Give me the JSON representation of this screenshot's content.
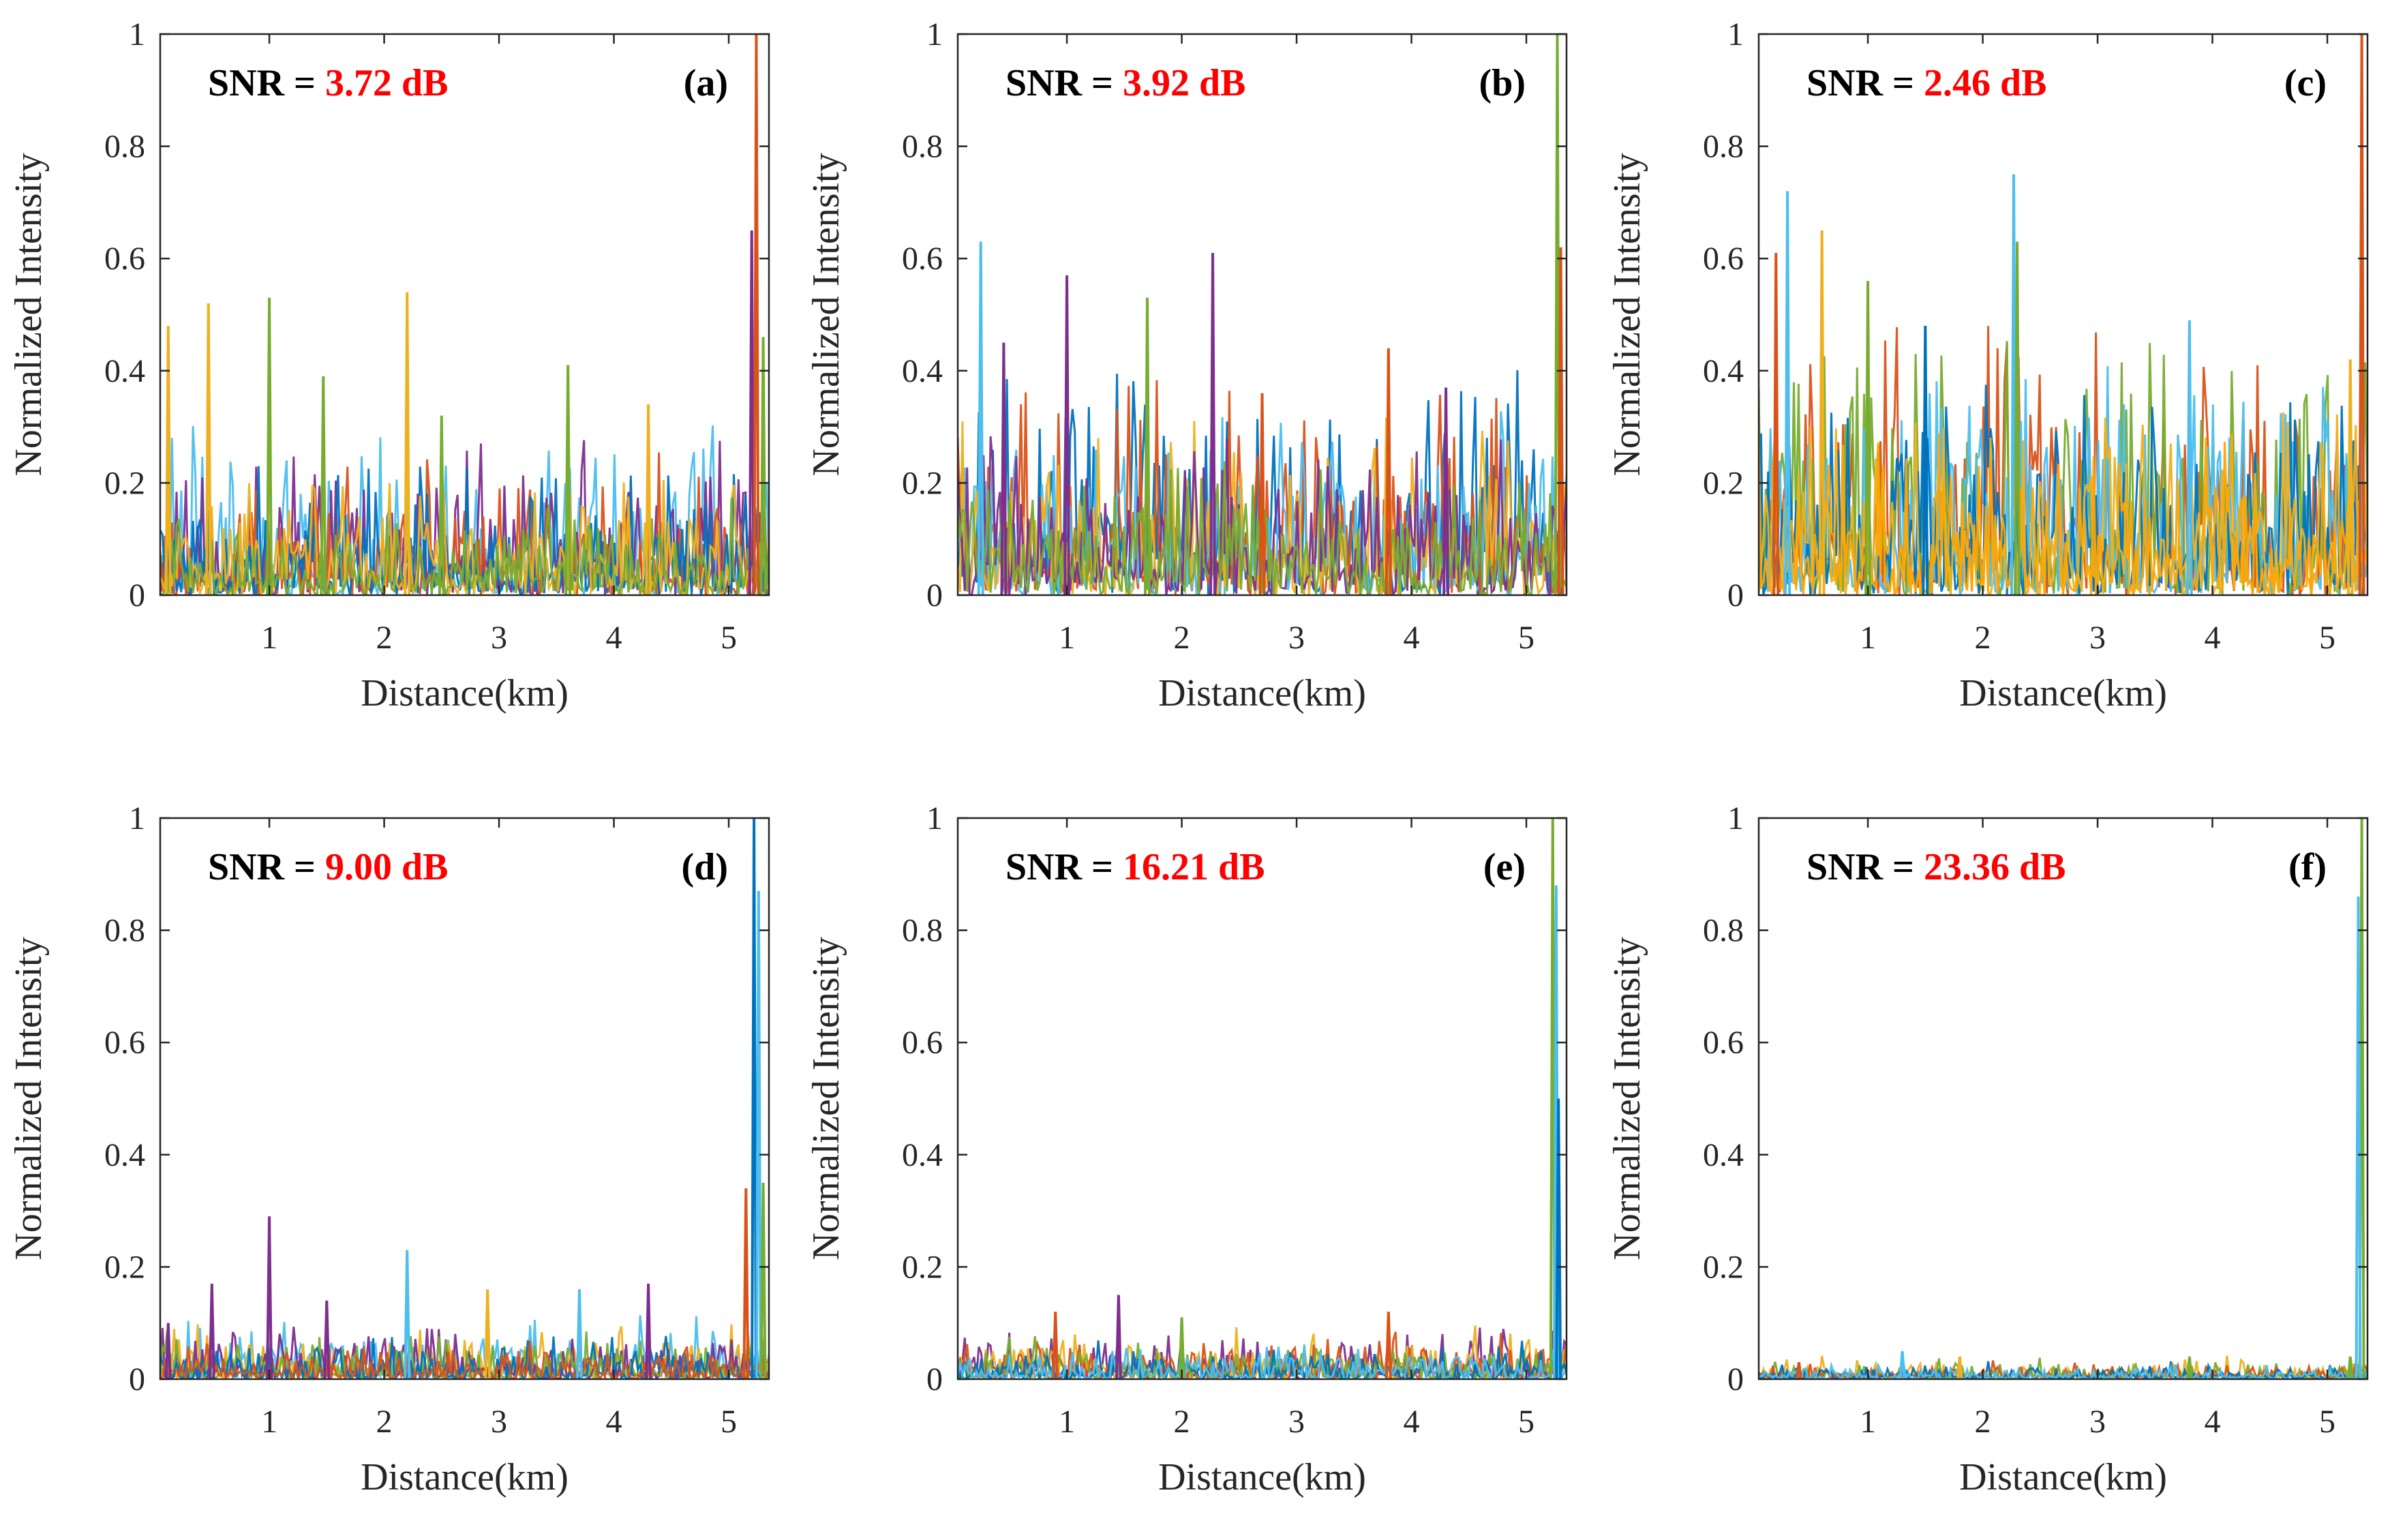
{
  "figure": {
    "colors": [
      "#0072BD",
      "#D95319",
      "#EDB120",
      "#7E2F8E",
      "#77AC30",
      "#4DBEEE"
    ],
    "snr_label_color": "#FF0000"
  },
  "chart_data": [
    {
      "type": "line",
      "panel": "(a)",
      "snr_prefix": "SNR = ",
      "snr_value": "3.72 dB",
      "xlabel": "Distance(km)",
      "ylabel": "Normalized Intensity",
      "xlim": [
        0.05,
        5.35
      ],
      "ylim": [
        0,
        1
      ],
      "xticks": [
        1,
        2,
        3,
        4,
        5
      ],
      "yticks": [
        0,
        0.2,
        0.4,
        0.6,
        0.8,
        1
      ],
      "ytick_labels": [
        "0",
        "0.2",
        "0.4",
        "0.6",
        "0.8",
        "1"
      ],
      "noise_level": 0.16,
      "spike_rate": 0.07,
      "series_colors": [
        "#4DBEEE",
        "#7E2F8E",
        "#D95319",
        "#0072BD",
        "#EDB120",
        "#77AC30"
      ],
      "peaks": [
        {
          "x": 0.12,
          "y": 0.48,
          "color": "#EDB120"
        },
        {
          "x": 0.47,
          "y": 0.52,
          "color": "#EDB120"
        },
        {
          "x": 1.0,
          "y": 0.53,
          "color": "#77AC30"
        },
        {
          "x": 1.47,
          "y": 0.39,
          "color": "#77AC30"
        },
        {
          "x": 2.2,
          "y": 0.54,
          "color": "#EDB120"
        },
        {
          "x": 2.5,
          "y": 0.32,
          "color": "#77AC30"
        },
        {
          "x": 3.6,
          "y": 0.41,
          "color": "#77AC30"
        },
        {
          "x": 4.3,
          "y": 0.34,
          "color": "#EDB120"
        },
        {
          "x": 5.2,
          "y": 0.65,
          "color": "#7E2F8E"
        },
        {
          "x": 5.24,
          "y": 1.0,
          "color": "#D95319"
        },
        {
          "x": 5.3,
          "y": 0.46,
          "color": "#77AC30"
        }
      ]
    },
    {
      "type": "line",
      "panel": "(b)",
      "snr_prefix": "SNR = ",
      "snr_value": "3.92 dB",
      "xlabel": "Distance(km)",
      "ylabel": "Normalized Intensity",
      "xlim": [
        0.05,
        5.35
      ],
      "ylim": [
        0,
        1
      ],
      "xticks": [
        1,
        2,
        3,
        4,
        5
      ],
      "yticks": [
        0,
        0.2,
        0.4,
        0.6,
        0.8,
        1
      ],
      "ytick_labels": [
        "0",
        "0.2",
        "0.4",
        "0.6",
        "0.8",
        "1"
      ],
      "noise_level": 0.22,
      "spike_rate": 0.08,
      "series_colors": [
        "#0072BD",
        "#D95319",
        "#4DBEEE",
        "#EDB120",
        "#7E2F8E",
        "#77AC30"
      ],
      "peaks": [
        {
          "x": 0.25,
          "y": 0.63,
          "color": "#4DBEEE"
        },
        {
          "x": 0.45,
          "y": 0.45,
          "color": "#7E2F8E"
        },
        {
          "x": 1.0,
          "y": 0.57,
          "color": "#7E2F8E"
        },
        {
          "x": 1.7,
          "y": 0.53,
          "color": "#77AC30"
        },
        {
          "x": 2.27,
          "y": 0.61,
          "color": "#7E2F8E"
        },
        {
          "x": 2.7,
          "y": 0.36,
          "color": "#D95319"
        },
        {
          "x": 3.8,
          "y": 0.44,
          "color": "#D95319"
        },
        {
          "x": 4.3,
          "y": 0.37,
          "color": "#7E2F8E"
        },
        {
          "x": 5.27,
          "y": 1.0,
          "color": "#77AC30"
        },
        {
          "x": 5.3,
          "y": 0.62,
          "color": "#D95319"
        }
      ]
    },
    {
      "type": "line",
      "panel": "(c)",
      "snr_prefix": "SNR = ",
      "snr_value": "2.46 dB",
      "xlabel": "Distance(km)",
      "ylabel": "Normalized Intensity",
      "xlim": [
        0.05,
        5.35
      ],
      "ylim": [
        0,
        1
      ],
      "xticks": [
        1,
        2,
        3,
        4,
        5
      ],
      "yticks": [
        0,
        0.2,
        0.4,
        0.6,
        0.8,
        1
      ],
      "ytick_labels": [
        "0",
        "0.2",
        "0.4",
        "0.6",
        "0.8",
        "1"
      ],
      "noise_level": 0.26,
      "spike_rate": 0.09,
      "series_colors": [
        "#D95319",
        "#77AC30",
        "#4DBEEE",
        "#0072BD",
        "#EDB120",
        "#FFA500"
      ],
      "peaks": [
        {
          "x": 0.2,
          "y": 0.61,
          "color": "#D95319"
        },
        {
          "x": 0.3,
          "y": 0.72,
          "color": "#4DBEEE"
        },
        {
          "x": 0.6,
          "y": 0.65,
          "color": "#EDB120"
        },
        {
          "x": 1.0,
          "y": 0.56,
          "color": "#77AC30"
        },
        {
          "x": 1.5,
          "y": 0.48,
          "color": "#0072BD"
        },
        {
          "x": 2.27,
          "y": 0.75,
          "color": "#4DBEEE"
        },
        {
          "x": 2.3,
          "y": 0.63,
          "color": "#77AC30"
        },
        {
          "x": 3.8,
          "y": 0.49,
          "color": "#4DBEEE"
        },
        {
          "x": 5.2,
          "y": 0.42,
          "color": "#EDB120"
        },
        {
          "x": 5.3,
          "y": 1.0,
          "color": "#D95319"
        }
      ]
    },
    {
      "type": "line",
      "panel": "(d)",
      "snr_prefix": "SNR = ",
      "snr_value": "9.00 dB",
      "xlabel": "Distance(km)",
      "ylabel": "Normalized Intensity",
      "xlim": [
        0.05,
        5.35
      ],
      "ylim": [
        0,
        1
      ],
      "xticks": [
        1,
        2,
        3,
        4,
        5
      ],
      "yticks": [
        0,
        0.2,
        0.4,
        0.6,
        0.8,
        1
      ],
      "ytick_labels": [
        "0",
        "0.2",
        "0.4",
        "0.6",
        "0.8",
        "1"
      ],
      "noise_level": 0.06,
      "spike_rate": 0.05,
      "series_colors": [
        "#4DBEEE",
        "#EDB120",
        "#7E2F8E",
        "#77AC30",
        "#0072BD",
        "#D95319"
      ],
      "peaks": [
        {
          "x": 0.12,
          "y": 0.1,
          "color": "#7E2F8E"
        },
        {
          "x": 0.5,
          "y": 0.17,
          "color": "#7E2F8E"
        },
        {
          "x": 1.0,
          "y": 0.29,
          "color": "#7E2F8E"
        },
        {
          "x": 1.5,
          "y": 0.14,
          "color": "#7E2F8E"
        },
        {
          "x": 2.2,
          "y": 0.23,
          "color": "#4DBEEE"
        },
        {
          "x": 2.9,
          "y": 0.16,
          "color": "#EDB120"
        },
        {
          "x": 3.7,
          "y": 0.16,
          "color": "#4DBEEE"
        },
        {
          "x": 4.3,
          "y": 0.17,
          "color": "#7E2F8E"
        },
        {
          "x": 5.15,
          "y": 0.34,
          "color": "#D95319"
        },
        {
          "x": 5.22,
          "y": 1.0,
          "color": "#0072BD"
        },
        {
          "x": 5.26,
          "y": 0.87,
          "color": "#4DBEEE"
        },
        {
          "x": 5.3,
          "y": 0.35,
          "color": "#77AC30"
        }
      ]
    },
    {
      "type": "line",
      "panel": "(e)",
      "snr_prefix": "SNR = ",
      "snr_value": "16.21 dB",
      "xlabel": "Distance(km)",
      "ylabel": "Normalized Intensity",
      "xlim": [
        0.05,
        5.35
      ],
      "ylim": [
        0,
        1
      ],
      "xticks": [
        1,
        2,
        3,
        4,
        5
      ],
      "yticks": [
        0,
        0.2,
        0.4,
        0.6,
        0.8,
        1
      ],
      "ytick_labels": [
        "0",
        "0.2",
        "0.4",
        "0.6",
        "0.8",
        "1"
      ],
      "noise_level": 0.055,
      "spike_rate": 0.04,
      "series_colors": [
        "#7E2F8E",
        "#EDB120",
        "#D95319",
        "#77AC30",
        "#0072BD",
        "#4DBEEE"
      ],
      "peaks": [
        {
          "x": 0.9,
          "y": 0.12,
          "color": "#D95319"
        },
        {
          "x": 1.45,
          "y": 0.15,
          "color": "#7E2F8E"
        },
        {
          "x": 2.0,
          "y": 0.11,
          "color": "#77AC30"
        },
        {
          "x": 3.8,
          "y": 0.12,
          "color": "#D95319"
        },
        {
          "x": 5.23,
          "y": 1.0,
          "color": "#77AC30"
        },
        {
          "x": 5.26,
          "y": 0.88,
          "color": "#4DBEEE"
        },
        {
          "x": 5.28,
          "y": 0.5,
          "color": "#0072BD"
        }
      ]
    },
    {
      "type": "line",
      "panel": "(f)",
      "snr_prefix": "SNR = ",
      "snr_value": "23.36 dB",
      "xlabel": "Distance(km)",
      "ylabel": "Normalized Intensity",
      "xlim": [
        0.05,
        5.35
      ],
      "ylim": [
        0,
        1
      ],
      "xticks": [
        1,
        2,
        3,
        4,
        5
      ],
      "yticks": [
        0,
        0.2,
        0.4,
        0.6,
        0.8,
        1
      ],
      "ytick_labels": [
        "0",
        "0.2",
        "0.4",
        "0.6",
        "0.8",
        "1"
      ],
      "noise_level": 0.022,
      "spike_rate": 0.03,
      "series_colors": [
        "#EDB120",
        "#77AC30",
        "#D95319",
        "#0072BD",
        "#4DBEEE"
      ],
      "peaks": [
        {
          "x": 0.4,
          "y": 0.03,
          "color": "#D95319"
        },
        {
          "x": 1.3,
          "y": 0.05,
          "color": "#4DBEEE"
        },
        {
          "x": 1.8,
          "y": 0.04,
          "color": "#EDB120"
        },
        {
          "x": 3.8,
          "y": 0.04,
          "color": "#77AC30"
        },
        {
          "x": 5.2,
          "y": 0.04,
          "color": "#77AC30"
        },
        {
          "x": 5.3,
          "y": 1.0,
          "color": "#77AC30"
        },
        {
          "x": 5.27,
          "y": 0.86,
          "color": "#4DBEEE"
        }
      ]
    }
  ]
}
